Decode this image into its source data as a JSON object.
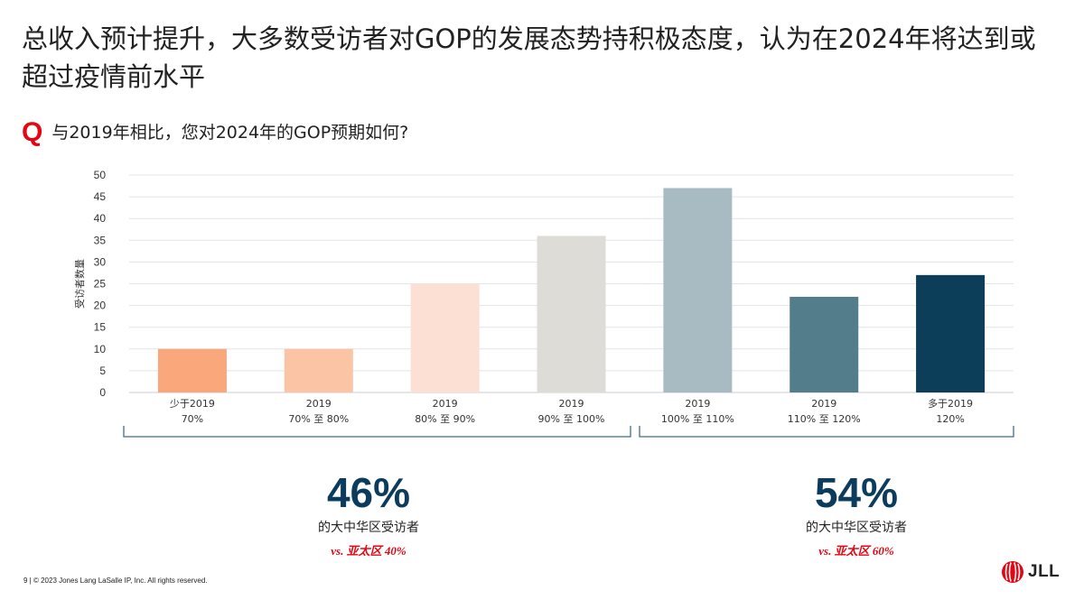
{
  "title": "总收入预计提升，大多数受访者对GOP的发展态势持积极态度，认为在2024年将达到或超过疫情前水平",
  "question": {
    "mark": "Q",
    "text": "与2019年相比，您对2024年的GOP预期如何?"
  },
  "chart_data": {
    "type": "bar",
    "ylabel": "受访者数量",
    "ylim": [
      0,
      50
    ],
    "yticks": [
      0,
      5,
      10,
      15,
      20,
      25,
      30,
      35,
      40,
      45,
      50
    ],
    "grid": true,
    "categories": [
      [
        "少于2019",
        "70%"
      ],
      [
        "2019",
        "70% 至 80%"
      ],
      [
        "2019",
        "80% 至 90%"
      ],
      [
        "2019",
        "90% 至 100%"
      ],
      [
        "2019",
        "100% 至 110%"
      ],
      [
        "2019",
        "110% 至 120%"
      ],
      [
        "多于2019",
        "120%"
      ]
    ],
    "values": [
      10,
      10,
      25,
      36,
      47,
      22,
      27
    ],
    "colors": [
      "#f9a77b",
      "#fac4a5",
      "#fbe0d3",
      "#dedcd6",
      "#a8bbc2",
      "#547d8b",
      "#0c3e5a"
    ]
  },
  "summaries": [
    {
      "pct": "46%",
      "desc": "的大中华区受访者",
      "cmp": "vs. 亚太区 40%"
    },
    {
      "pct": "54%",
      "desc": "的大中华区受访者",
      "cmp": "vs. 亚太区 60%"
    }
  ],
  "footer": "9 | © 2023 Jones Lang LaSalle IP, Inc. All rights reserved.",
  "logo": {
    "text": "JLL",
    "color": "#e30613"
  }
}
